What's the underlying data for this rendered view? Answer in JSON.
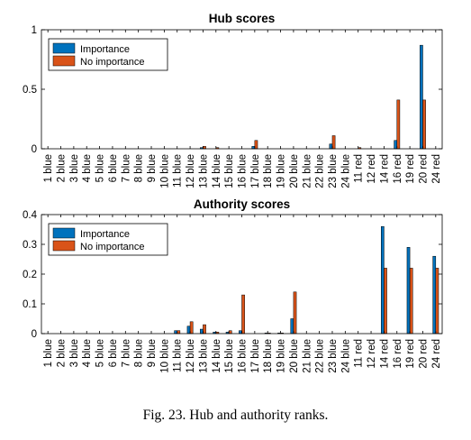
{
  "colors": {
    "importance": "#0072BD",
    "no_importance": "#D95319",
    "axis": "#000000"
  },
  "caption": "Fig. 23.    Hub and authority ranks.",
  "chart_data": [
    {
      "type": "bar",
      "title": "Hub scores",
      "xlabel": "",
      "ylabel": "",
      "ylim": [
        0,
        1
      ],
      "yticks": [
        0,
        0.5,
        1
      ],
      "ytick_labels": [
        "0",
        "0.5",
        "1"
      ],
      "grid": false,
      "legend_position": "top-left",
      "categories": [
        "1 blue",
        "2 blue",
        "3 blue",
        "4 blue",
        "5 blue",
        "6 blue",
        "7 blue",
        "8 blue",
        "9 blue",
        "10 blue",
        "11 blue",
        "12 blue",
        "13 blue",
        "14 blue",
        "15 blue",
        "16 blue",
        "17 blue",
        "18 blue",
        "19 blue",
        "20 blue",
        "21 blue",
        "22 blue",
        "23 blue",
        "24 blue",
        "11 red",
        "12 red",
        "14 red",
        "16 red",
        "19 red",
        "20 red",
        "24 red"
      ],
      "series": [
        {
          "name": "Importance",
          "values": [
            0,
            0,
            0,
            0,
            0,
            0,
            0,
            0,
            0,
            0,
            0,
            0,
            0.01,
            0,
            0,
            0,
            0.02,
            0,
            0,
            0,
            0,
            0,
            0.04,
            0,
            0,
            0,
            0,
            0.07,
            0,
            0.87,
            0
          ]
        },
        {
          "name": "No importance",
          "values": [
            0,
            0,
            0,
            0,
            0,
            0,
            0,
            0,
            0,
            0,
            0,
            0,
            0.02,
            0.01,
            0,
            0,
            0.07,
            0,
            0,
            0,
            0,
            0,
            0.11,
            0,
            0.01,
            0,
            0,
            0.41,
            0,
            0.41,
            0
          ]
        }
      ]
    },
    {
      "type": "bar",
      "title": "Authority scores",
      "xlabel": "",
      "ylabel": "",
      "ylim": [
        0,
        0.4
      ],
      "yticks": [
        0,
        0.1,
        0.2,
        0.3,
        0.4
      ],
      "ytick_labels": [
        "0",
        "0.1",
        "0.2",
        "0.3",
        "0.4"
      ],
      "grid": false,
      "legend_position": "top-left",
      "categories": [
        "1 blue",
        "2 blue",
        "3 blue",
        "4 blue",
        "5 blue",
        "6 blue",
        "7 blue",
        "8 blue",
        "9 blue",
        "10 blue",
        "11 blue",
        "12 blue",
        "13 blue",
        "14 blue",
        "15 blue",
        "16 blue",
        "17 blue",
        "18 blue",
        "19 blue",
        "20 blue",
        "21 blue",
        "22 blue",
        "23 blue",
        "24 blue",
        "11 red",
        "12 red",
        "14 red",
        "16 red",
        "19 red",
        "20 red",
        "24 red"
      ],
      "series": [
        {
          "name": "Importance",
          "values": [
            0,
            0,
            0,
            0,
            0,
            0,
            0,
            0,
            0,
            0,
            0.01,
            0.025,
            0.015,
            0.005,
            0.005,
            0.01,
            0,
            0.002,
            0.002,
            0.05,
            0,
            0,
            0,
            0,
            0,
            0,
            0.36,
            0,
            0.29,
            0,
            0.26
          ]
        },
        {
          "name": "No importance",
          "values": [
            0,
            0,
            0,
            0,
            0,
            0,
            0,
            0,
            0,
            0,
            0.01,
            0.04,
            0.03,
            0.005,
            0.01,
            0.13,
            0,
            0.002,
            0.002,
            0.14,
            0,
            0,
            0,
            0,
            0,
            0,
            0.22,
            0,
            0.22,
            0,
            0.22
          ]
        }
      ]
    }
  ]
}
